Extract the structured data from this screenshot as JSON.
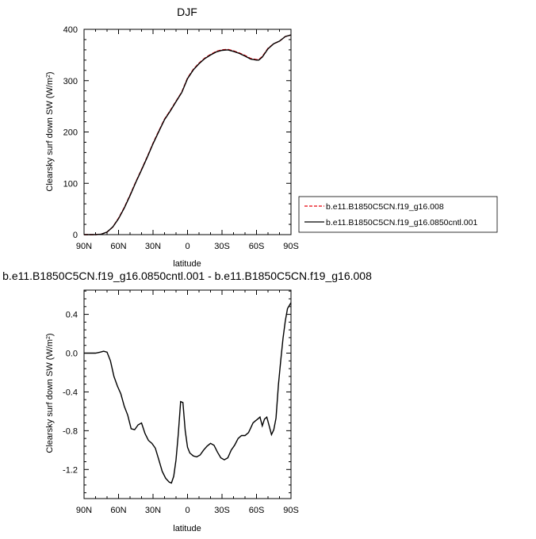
{
  "chart_data": [
    {
      "type": "line",
      "title": "DJF",
      "ylabel": "Clearsky surf down SW (W/m",
      "ylabel_sup": "2",
      "ylabel_tail": ")",
      "xlabel": "latitude",
      "x_ticks": [
        "90N",
        "60N",
        "30N",
        "0",
        "30S",
        "60S",
        "90S"
      ],
      "y_ticks": [
        "0",
        "100",
        "200",
        "300",
        "400"
      ],
      "ylim": [
        0,
        400
      ],
      "xlim": [
        90,
        -90
      ],
      "grid": false,
      "legend_position": "right",
      "legend": [
        {
          "label": "b.e11.B1850C5CN.f19_g16.008",
          "color": "#e8000b",
          "dash": true
        },
        {
          "label": "b.e11.B1850C5CN.f19_g16.0850cntl.001",
          "color": "#000000",
          "dash": false
        }
      ],
      "series": [
        {
          "name": "b.e11.B1850C5CN.f19_g16.008",
          "color": "#e8000b",
          "x": [
            90,
            85,
            80,
            75,
            70,
            65,
            60,
            55,
            50,
            45,
            40,
            35,
            30,
            25,
            20,
            15,
            10,
            5,
            0,
            -5,
            -10,
            -15,
            -20,
            -25,
            -30,
            -35,
            -40,
            -45,
            -50,
            -55,
            -60,
            -62,
            -65,
            -70,
            -75,
            -80,
            -85,
            -90
          ],
          "y": [
            0,
            0,
            0,
            1,
            5,
            15,
            32,
            53,
            77,
            103,
            127,
            152,
            178,
            202,
            225,
            242,
            260,
            278,
            305,
            322,
            334,
            344,
            351,
            357,
            360,
            361,
            358,
            354,
            349,
            343,
            341,
            341,
            347,
            363,
            372,
            377,
            386,
            389
          ]
        },
        {
          "name": "b.e11.B1850C5CN.f19_g16.0850cntl.001",
          "color": "#000000",
          "x": [
            90,
            85,
            80,
            75,
            70,
            65,
            60,
            55,
            50,
            45,
            40,
            35,
            30,
            25,
            20,
            15,
            10,
            5,
            0,
            -5,
            -10,
            -15,
            -20,
            -25,
            -30,
            -35,
            -40,
            -45,
            -50,
            -55,
            -60,
            -62,
            -65,
            -70,
            -75,
            -80,
            -85,
            -90
          ],
          "y": [
            0,
            0,
            0,
            1,
            5,
            15,
            31,
            52,
            76,
            102,
            126,
            151,
            177,
            201,
            224,
            241,
            259,
            277,
            304,
            321,
            333,
            343,
            350,
            356,
            359,
            360,
            357,
            353,
            348,
            342,
            340,
            340,
            346,
            362,
            372,
            377,
            386,
            389
          ]
        }
      ]
    },
    {
      "type": "line",
      "title": "b.e11.B1850C5CN.f19_g16.0850cntl.001 - b.e11.B1850C5CN.f19_g16.008",
      "ylabel": "Clearsky surf down SW (W/m",
      "ylabel_sup": "2",
      "ylabel_tail": ")",
      "xlabel": "latitude",
      "x_ticks": [
        "90N",
        "60N",
        "30N",
        "0",
        "30S",
        "60S",
        "90S"
      ],
      "y_ticks": [
        "-1.2",
        "-0.8",
        "-0.4",
        "0.0",
        "0.4"
      ],
      "ylim": [
        -1.5,
        0.65
      ],
      "xlim": [
        90,
        -90
      ],
      "grid": false,
      "series": [
        {
          "name": "b.e11.B1850C5CN.f19_g16.0850cntl.001 - b.e11.B1850C5CN.f19_g16.008",
          "color": "#000000",
          "x": [
            90,
            85,
            80,
            76,
            73,
            70,
            67,
            64,
            61,
            58,
            55,
            52,
            49,
            46,
            43,
            40,
            37,
            34,
            31,
            28,
            25,
            22,
            19,
            16,
            14,
            12,
            10,
            8,
            6,
            4,
            2,
            0,
            -2,
            -5,
            -8,
            -11,
            -14,
            -17,
            -20,
            -23,
            -26,
            -29,
            -32,
            -35,
            -38,
            -41,
            -44,
            -47,
            -50,
            -53,
            -55,
            -57,
            -59,
            -61,
            -63,
            -65,
            -67,
            -69,
            -71,
            -73,
            -75,
            -77,
            -79,
            -81,
            -83,
            -85,
            -87,
            -90
          ],
          "y": [
            0.0,
            0.0,
            0.0,
            0.01,
            0.02,
            0.01,
            -0.08,
            -0.24,
            -0.34,
            -0.42,
            -0.55,
            -0.64,
            -0.78,
            -0.79,
            -0.74,
            -0.72,
            -0.83,
            -0.9,
            -0.93,
            -0.98,
            -1.1,
            -1.22,
            -1.29,
            -1.33,
            -1.34,
            -1.27,
            -1.1,
            -0.83,
            -0.5,
            -0.51,
            -0.8,
            -0.97,
            -1.03,
            -1.06,
            -1.07,
            -1.05,
            -1.0,
            -0.96,
            -0.93,
            -0.95,
            -1.02,
            -1.08,
            -1.1,
            -1.08,
            -1.0,
            -0.95,
            -0.88,
            -0.85,
            -0.85,
            -0.82,
            -0.77,
            -0.72,
            -0.7,
            -0.68,
            -0.66,
            -0.75,
            -0.68,
            -0.66,
            -0.75,
            -0.84,
            -0.79,
            -0.67,
            -0.33,
            -0.09,
            0.15,
            0.33,
            0.46,
            0.52
          ]
        }
      ]
    }
  ]
}
